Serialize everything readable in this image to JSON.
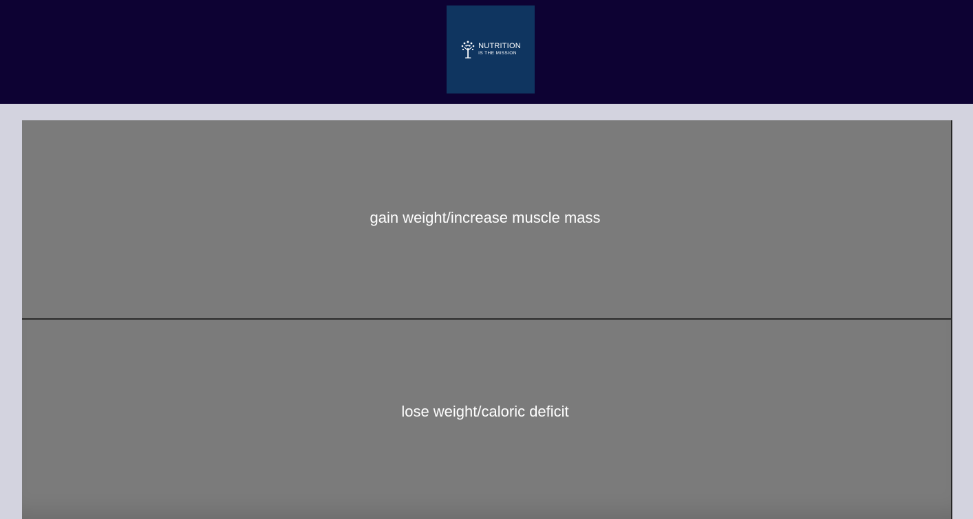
{
  "header": {
    "background_color": "#0d0233",
    "logo": {
      "icon": "tree-icon",
      "line1": "NUTRITION",
      "line2": "IS THE MISSION",
      "background_color": "#0f3560"
    }
  },
  "main": {
    "background_color": "#d3d3df",
    "options": [
      {
        "label": "gain weight/increase muscle mass"
      },
      {
        "label": "lose weight/caloric deficit"
      }
    ],
    "option_color": "#7b7b7b"
  }
}
